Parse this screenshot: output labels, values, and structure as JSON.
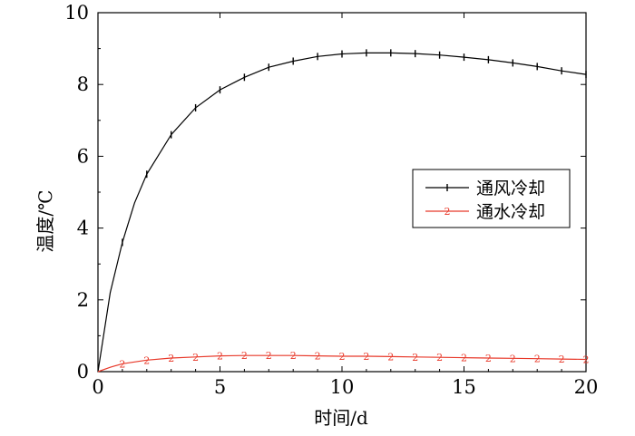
{
  "chart_data": {
    "type": "line",
    "xlabel": "时间/d",
    "ylabel": "温度/℃",
    "xlim": [
      0,
      20
    ],
    "ylim": [
      0,
      10
    ],
    "xticks": [
      "0",
      "5",
      "10",
      "15",
      "20"
    ],
    "yticks": [
      "0",
      "2",
      "4",
      "6",
      "8",
      "10"
    ],
    "grid": false,
    "legend_position": "right",
    "series": [
      {
        "name": "通风冷却",
        "marker": "|",
        "color": "#000000",
        "x": [
          0,
          0.5,
          1,
          1.5,
          2,
          3,
          4,
          5,
          6,
          7,
          8,
          9,
          10,
          11,
          12,
          13,
          14,
          15,
          16,
          17,
          18,
          19,
          20
        ],
        "y": [
          0,
          2.2,
          3.6,
          4.7,
          5.5,
          6.6,
          7.35,
          7.85,
          8.2,
          8.48,
          8.65,
          8.78,
          8.85,
          8.88,
          8.88,
          8.86,
          8.82,
          8.76,
          8.69,
          8.6,
          8.5,
          8.38,
          8.28
        ]
      },
      {
        "name": "通水冷却",
        "marker": "2",
        "color": "#e8392a",
        "x": [
          0,
          0.5,
          1,
          2,
          3,
          4,
          5,
          6,
          7,
          8,
          9,
          10,
          11,
          12,
          13,
          14,
          15,
          16,
          17,
          18,
          19,
          20
        ],
        "y": [
          0,
          0.12,
          0.22,
          0.32,
          0.38,
          0.41,
          0.44,
          0.45,
          0.45,
          0.45,
          0.44,
          0.43,
          0.43,
          0.42,
          0.41,
          0.4,
          0.39,
          0.38,
          0.37,
          0.36,
          0.35,
          0.34
        ]
      }
    ]
  }
}
